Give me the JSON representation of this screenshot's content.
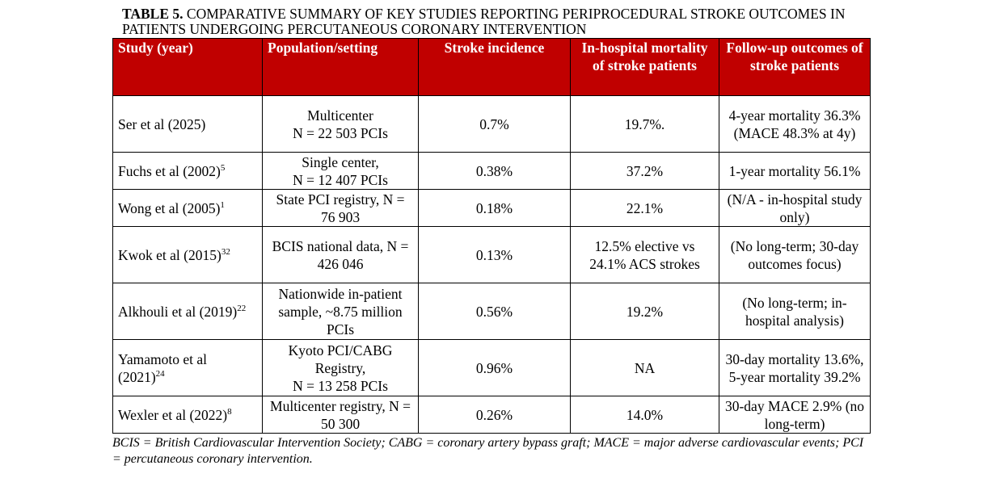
{
  "title": {
    "label": "TABLE 5.",
    "text": " COMPARATIVE SUMMARY OF KEY STUDIES REPORTING PERIPROCEDURAL STROKE OUTCOMES IN PATIENTS UNDERGOING PERCUTANEOUS CORONARY INTERVENTION"
  },
  "headers": [
    "Study (year)",
    "Population/setting",
    "Stroke incidence",
    "In-hospital mortality of stroke patients",
    "Follow-up outcomes of stroke patients"
  ],
  "rows": [
    {
      "study": "Ser et al (2025)",
      "ref": "",
      "population": "Multicenter\nN = 22 503 PCIs",
      "incidence": "0.7%",
      "mortality": "19.7%.",
      "followup": "4-year mortality 36.3% (MACE 48.3% at 4y)"
    },
    {
      "study": "Fuchs et al (2002)",
      "ref": "5",
      "population": "Single center,\nN = 12 407 PCIs",
      "incidence": "0.38%",
      "mortality": "37.2%",
      "followup": "1-year mortality 56.1%"
    },
    {
      "study": "Wong et al (2005)",
      "ref": "1",
      "population": "State PCI registry, N = 76 903",
      "incidence": "0.18%",
      "mortality": "22.1%",
      "followup": "(N/A - in-hospital study only)"
    },
    {
      "study": "Kwok et al (2015)",
      "ref": "32",
      "population": "BCIS national data, N = 426 046",
      "incidence": "0.13%",
      "mortality": "12.5% elective vs 24.1% ACS strokes",
      "followup": "(No long-term; 30-day outcomes focus)"
    },
    {
      "study": "Alkhouli et al (2019)",
      "ref": "22",
      "population": "Nationwide in-patient sample, ~8.75 million PCIs",
      "incidence": "0.56%",
      "mortality": "19.2%",
      "followup": "(No long-term; in-hospital analysis)"
    },
    {
      "study": "Yamamoto et al (2021)",
      "ref": "24",
      "population": "Kyoto PCI/CABG Registry,\nN = 13 258 PCIs",
      "incidence": "0.96%",
      "mortality": "NA",
      "followup": "30-day mortality 13.6%, 5-year mortality 39.2%"
    },
    {
      "study": "Wexler et al (2022)",
      "ref": "8",
      "population": "Multicenter registry, N = 50 300",
      "incidence": "0.26%",
      "mortality": "14.0%",
      "followup": "30-day MACE 2.9% (no long-term)"
    }
  ],
  "footnote": "BCIS = British Cardiovascular Intervention Society; CABG = coronary artery bypass graft; MACE = major adverse cardiovascular events; PCI = percutaneous coronary intervention.",
  "colors": {
    "header_bg": "#c00000",
    "header_text": "#ffffff"
  }
}
